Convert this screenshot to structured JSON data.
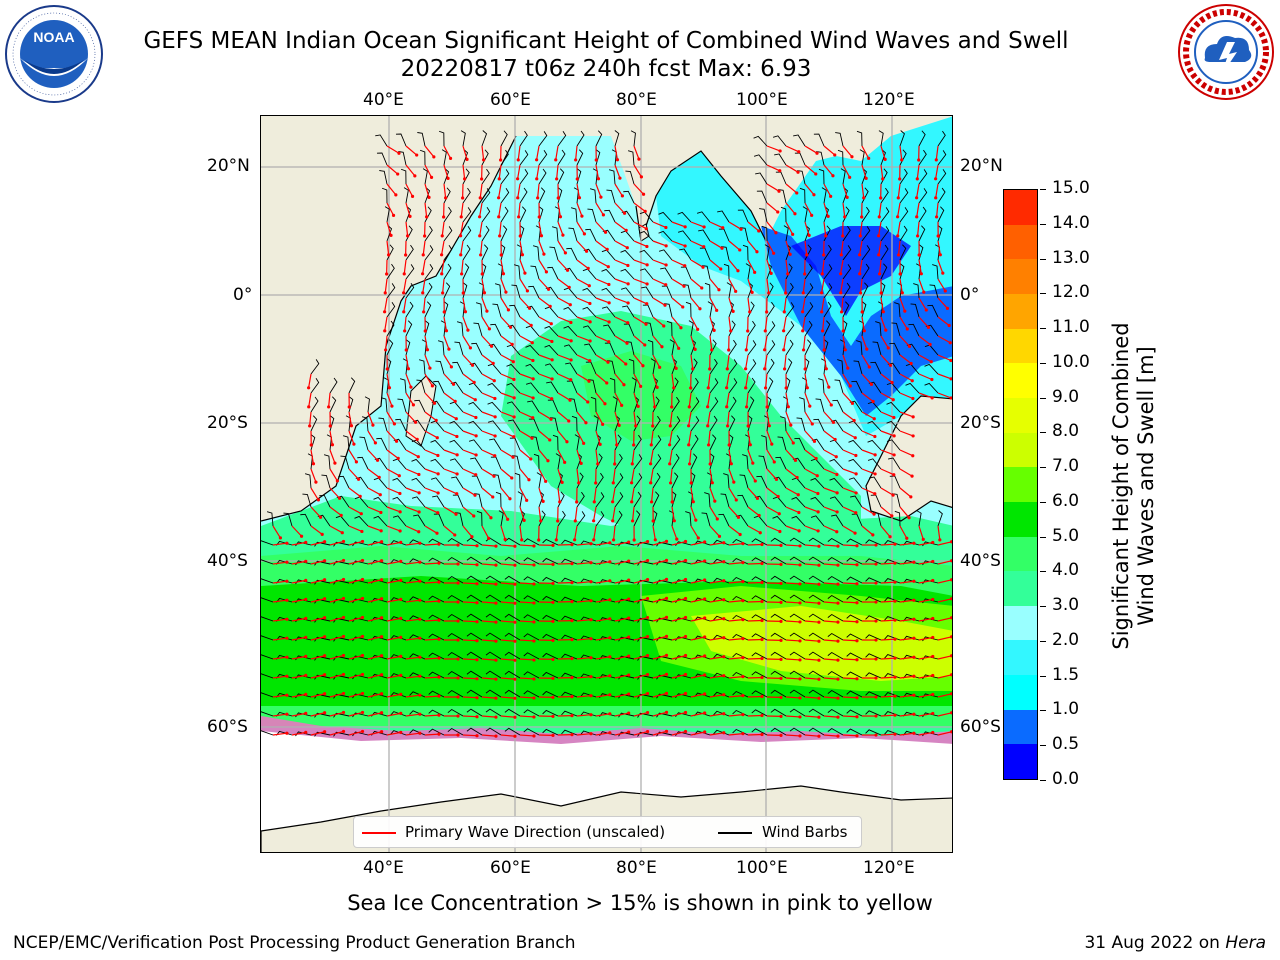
{
  "title": {
    "line1": "GEFS MEAN Indian Ocean Significant Height of Combined Wind Waves and Swell",
    "line2": "20220817 t06z 240h fcst   Max: 6.93"
  },
  "logos": {
    "left": {
      "text": "NOAA",
      "ring_text": "NATIONAL OCEANIC AND ATMOSPHERIC ADMINISTRATION · U.S. DEPARTMENT OF COMMERCE"
    },
    "right": {
      "ring_text": "NATIONAL WEATHER SERVICE"
    }
  },
  "map": {
    "top_lon_labels": [
      "40°E",
      "60°E",
      "80°E",
      "100°E",
      "120°E"
    ],
    "bottom_lon_labels": [
      "40°E",
      "60°E",
      "80°E",
      "100°E",
      "120°E"
    ],
    "left_lat_labels": [
      "20°N",
      "0°",
      "20°S",
      "40°S",
      "60°S"
    ],
    "right_lat_labels": [
      "20°N",
      "0°",
      "20°S",
      "40°S",
      "60°S"
    ],
    "colors": {
      "land": "#efeddc",
      "ice": "#ffffff",
      "wave_arrow": "#ff0000",
      "wind_barb": "#000000",
      "gridline": "#b0b0b0"
    },
    "legend": {
      "wave_label": "Primary Wave Direction (unscaled)",
      "wind_label": "Wind Barbs"
    }
  },
  "colorbar": {
    "label_line1": "Significant Height of Combined",
    "label_line2": "Wind Waves and Swell [m]",
    "tick_labels": [
      "0.0",
      "0.5",
      "1.0",
      "1.5",
      "2.0",
      "3.0",
      "4.0",
      "5.0",
      "6.0",
      "7.0",
      "8.0",
      "9.0",
      "10.0",
      "11.0",
      "12.0",
      "13.0",
      "14.0",
      "15.0"
    ],
    "colors": [
      "#0000ff",
      "#0a6bff",
      "#00ffff",
      "#33f7ff",
      "#99ffff",
      "#33ff99",
      "#33ff66",
      "#00e600",
      "#66ff00",
      "#ccff00",
      "#e6ff00",
      "#ffff00",
      "#ffd700",
      "#ffa500",
      "#ff8000",
      "#ff6000",
      "#ff2a00"
    ]
  },
  "footer": {
    "sea_ice_note": "Sea Ice Concentration > 15% is shown in pink to yellow",
    "branch": "NCEP/EMC/Verification Post Processing Product Generation Branch",
    "date_text": "31 Aug 2022 on ",
    "machine": "Hera"
  }
}
